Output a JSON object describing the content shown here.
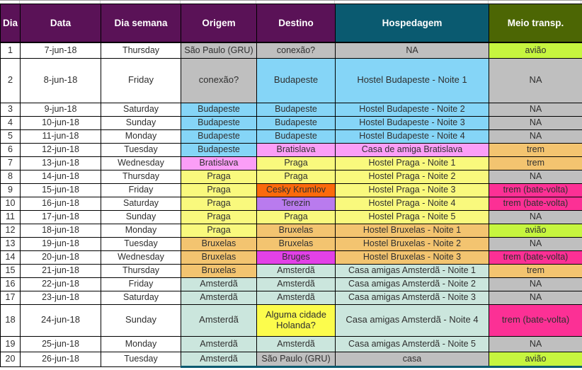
{
  "palette": {
    "header_purple": "#5A1257",
    "header_teal": "#0A5A70",
    "header_olive": "#4C6604",
    "gray": "#BFBFBF",
    "blue": "#85D5F7",
    "pink": "#FB9EF7",
    "pale_yellow": "#F9F97D",
    "bright_yellow": "#FCFC4C",
    "orange": "#FB6A0C",
    "violet": "#B97BEE",
    "tan": "#F3C470",
    "magenta": "#E341E7",
    "pale_teal": "#CBE6DD",
    "chartreuse": "#C6F53F",
    "hot_pink": "#FC3095",
    "white": "#FFFFFF"
  },
  "columns": [
    {
      "label": "Dia"
    },
    {
      "label": "Data"
    },
    {
      "label": "Dia semana"
    },
    {
      "label": "Origem"
    },
    {
      "label": "Destino"
    },
    {
      "label": "Hospedagem"
    },
    {
      "label": "Meio transp."
    }
  ],
  "rows": [
    {
      "dia": "1",
      "data": "7-jun-18",
      "semana": "Thursday",
      "h": 22,
      "origem": {
        "text": "São Paulo (GRU)",
        "color": "gray"
      },
      "destino": {
        "text": "conexão?",
        "color": "gray"
      },
      "hospedagem": {
        "text": "NA",
        "color": "gray"
      },
      "meio": {
        "text": "avião",
        "color": "chartreuse"
      }
    },
    {
      "dia": "2",
      "data": "8-jun-18",
      "semana": "Friday",
      "h": 63,
      "origem": {
        "text": "conexão?",
        "color": "gray"
      },
      "destino": {
        "text": "Budapeste",
        "color": "blue"
      },
      "hospedagem": {
        "text": "Hostel Budapeste - Noite 1",
        "color": "blue"
      },
      "meio": {
        "text": "NA",
        "color": "gray"
      }
    },
    {
      "dia": "3",
      "data": "9-jun-18",
      "semana": "Saturday",
      "h": 19,
      "origem": {
        "text": "Budapeste",
        "color": "blue"
      },
      "destino": {
        "text": "Budapeste",
        "color": "blue"
      },
      "hospedagem": {
        "text": "Hostel Budapeste - Noite 2",
        "color": "blue"
      },
      "meio": {
        "text": "NA",
        "color": "gray"
      }
    },
    {
      "dia": "4",
      "data": "10-jun-18",
      "semana": "Sunday",
      "h": 19,
      "origem": {
        "text": "Budapeste",
        "color": "blue"
      },
      "destino": {
        "text": "Budapeste",
        "color": "blue"
      },
      "hospedagem": {
        "text": "Hostel Budapeste - Noite 3",
        "color": "blue"
      },
      "meio": {
        "text": "NA",
        "color": "gray"
      }
    },
    {
      "dia": "5",
      "data": "11-jun-18",
      "semana": "Monday",
      "h": 19,
      "origem": {
        "text": "Budapeste",
        "color": "blue"
      },
      "destino": {
        "text": "Budapeste",
        "color": "blue"
      },
      "hospedagem": {
        "text": "Hostel Budapeste - Noite 4",
        "color": "blue"
      },
      "meio": {
        "text": "NA",
        "color": "gray"
      }
    },
    {
      "dia": "6",
      "data": "12-jun-18",
      "semana": "Tuesday",
      "h": 19,
      "origem": {
        "text": "Budapeste",
        "color": "blue"
      },
      "destino": {
        "text": "Bratislava",
        "color": "pink"
      },
      "hospedagem": {
        "text": "Casa de amiga Bratislava",
        "color": "pink"
      },
      "meio": {
        "text": "trem",
        "color": "tan"
      }
    },
    {
      "dia": "7",
      "data": "13-jun-18",
      "semana": "Wednesday",
      "h": 19,
      "origem": {
        "text": "Bratislava",
        "color": "pink"
      },
      "destino": {
        "text": "Praga",
        "color": "pale_yellow"
      },
      "hospedagem": {
        "text": "Hostel Praga - Noite 1",
        "color": "pale_yellow"
      },
      "meio": {
        "text": "trem",
        "color": "tan"
      }
    },
    {
      "dia": "8",
      "data": "14-jun-18",
      "semana": "Thursday",
      "h": 19,
      "origem": {
        "text": "Praga",
        "color": "pale_yellow"
      },
      "destino": {
        "text": "Praga",
        "color": "pale_yellow"
      },
      "hospedagem": {
        "text": "Hostel Praga - Noite 2",
        "color": "pale_yellow"
      },
      "meio": {
        "text": "NA",
        "color": "gray"
      }
    },
    {
      "dia": "9",
      "data": "15-jun-18",
      "semana": "Friday",
      "h": 19,
      "origem": {
        "text": "Praga",
        "color": "pale_yellow"
      },
      "destino": {
        "text": "Cesky Krumlov",
        "color": "orange"
      },
      "hospedagem": {
        "text": "Hostel Praga - Noite 3",
        "color": "pale_yellow"
      },
      "meio": {
        "text": "trem (bate-volta)",
        "color": "hot_pink"
      }
    },
    {
      "dia": "10",
      "data": "16-jun-18",
      "semana": "Saturday",
      "h": 19,
      "origem": {
        "text": "Praga",
        "color": "pale_yellow"
      },
      "destino": {
        "text": "Terezin",
        "color": "violet"
      },
      "hospedagem": {
        "text": "Hostel Praga - Noite 4",
        "color": "pale_yellow"
      },
      "meio": {
        "text": "trem (bate-volta)",
        "color": "hot_pink"
      }
    },
    {
      "dia": "11",
      "data": "17-jun-18",
      "semana": "Sunday",
      "h": 19,
      "origem": {
        "text": "Praga",
        "color": "pale_yellow"
      },
      "destino": {
        "text": "Praga",
        "color": "pale_yellow"
      },
      "hospedagem": {
        "text": "Hostel Praga - Noite 5",
        "color": "pale_yellow"
      },
      "meio": {
        "text": "NA",
        "color": "gray"
      }
    },
    {
      "dia": "12",
      "data": "18-jun-18",
      "semana": "Monday",
      "h": 19,
      "origem": {
        "text": "Praga",
        "color": "pale_yellow"
      },
      "destino": {
        "text": "Bruxelas",
        "color": "tan"
      },
      "hospedagem": {
        "text": "Hostel Bruxelas - Noite 1",
        "color": "tan"
      },
      "meio": {
        "text": "avião",
        "color": "chartreuse"
      }
    },
    {
      "dia": "13",
      "data": "19-jun-18",
      "semana": "Tuesday",
      "h": 19,
      "origem": {
        "text": "Bruxelas",
        "color": "tan"
      },
      "destino": {
        "text": "Bruxelas",
        "color": "tan"
      },
      "hospedagem": {
        "text": "Hostel Bruxelas - Noite 2",
        "color": "tan"
      },
      "meio": {
        "text": "NA",
        "color": "gray"
      }
    },
    {
      "dia": "14",
      "data": "20-jun-18",
      "semana": "Wednesday",
      "h": 19,
      "origem": {
        "text": "Bruxelas",
        "color": "tan"
      },
      "destino": {
        "text": "Bruges",
        "color": "magenta"
      },
      "hospedagem": {
        "text": "Hostel Bruxelas - Noite 3",
        "color": "tan"
      },
      "meio": {
        "text": "trem (bate-volta)",
        "color": "hot_pink"
      }
    },
    {
      "dia": "15",
      "data": "21-jun-18",
      "semana": "Thursday",
      "h": 19,
      "origem": {
        "text": "Bruxelas",
        "color": "tan"
      },
      "destino": {
        "text": "Amsterdã",
        "color": "pale_teal"
      },
      "hospedagem": {
        "text": "Casa amigas Amsterdã - Noite 1",
        "color": "pale_teal"
      },
      "meio": {
        "text": "trem",
        "color": "tan"
      }
    },
    {
      "dia": "16",
      "data": "22-jun-18",
      "semana": "Friday",
      "h": 19,
      "origem": {
        "text": "Amsterdã",
        "color": "pale_teal"
      },
      "destino": {
        "text": "Amsterdã",
        "color": "pale_teal"
      },
      "hospedagem": {
        "text": "Casa amigas Amsterdã - Noite 2",
        "color": "pale_teal"
      },
      "meio": {
        "text": "NA",
        "color": "gray"
      }
    },
    {
      "dia": "17",
      "data": "23-jun-18",
      "semana": "Saturday",
      "h": 19,
      "origem": {
        "text": "Amsterdã",
        "color": "pale_teal"
      },
      "destino": {
        "text": "Amsterdã",
        "color": "pale_teal"
      },
      "hospedagem": {
        "text": "Casa amigas Amsterdã - Noite 3",
        "color": "pale_teal"
      },
      "meio": {
        "text": "NA",
        "color": "gray"
      }
    },
    {
      "dia": "18",
      "data": "24-jun-18",
      "semana": "Sunday",
      "h": 45,
      "origem": {
        "text": "Amsterdã",
        "color": "pale_teal"
      },
      "destino": {
        "text": "Alguma cidade Holanda?",
        "color": "bright_yellow"
      },
      "hospedagem": {
        "text": "Casa amigas Amsterdã - Noite 4",
        "color": "pale_teal"
      },
      "meio": {
        "text": "trem (bate-volta)",
        "color": "hot_pink"
      }
    },
    {
      "dia": "19",
      "data": "25-jun-18",
      "semana": "Monday",
      "h": 22,
      "origem": {
        "text": "Amsterdã",
        "color": "pale_teal"
      },
      "destino": {
        "text": "Amsterdã",
        "color": "pale_teal"
      },
      "hospedagem": {
        "text": "Casa amigas Amsterdã - Noite 5",
        "color": "pale_teal"
      },
      "meio": {
        "text": "NA",
        "color": "gray"
      }
    },
    {
      "dia": "20",
      "data": "26-jun-18",
      "semana": "Tuesday",
      "h": 21,
      "origem": {
        "text": "Amsterdã",
        "color": "pale_teal"
      },
      "destino": {
        "text": "São Paulo (GRU)",
        "color": "gray"
      },
      "hospedagem": {
        "text": "casa",
        "color": "gray"
      },
      "meio": {
        "text": "avião",
        "color": "chartreuse"
      }
    }
  ]
}
